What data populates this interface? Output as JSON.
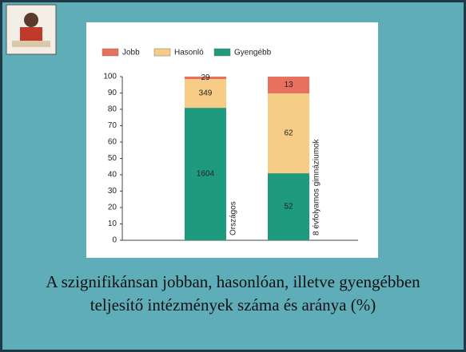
{
  "chart_data": {
    "type": "bar",
    "stacking": "percent",
    "title": "A szignifikánsan jobban, hasonlóan, illetve gyengébben teljesítő intézmények száma és aránya (%)",
    "categories": [
      "Országos",
      "8 évfolyamos gimnáziumok"
    ],
    "series": [
      {
        "name": "Gyengébb",
        "color": "#1e9a7e",
        "values": [
          1604,
          52
        ]
      },
      {
        "name": "Hasonló",
        "color": "#f7cc87",
        "values": [
          349,
          62
        ]
      },
      {
        "name": "Jobb",
        "color": "#e8705e",
        "values": [
          29,
          13
        ]
      }
    ],
    "legend_order": [
      "Jobb",
      "Hasonló",
      "Gyengébb"
    ],
    "ylim": [
      0,
      100
    ],
    "yticks": [
      0,
      10,
      20,
      30,
      40,
      50,
      60,
      70,
      80,
      90,
      100
    ],
    "grid": false
  }
}
